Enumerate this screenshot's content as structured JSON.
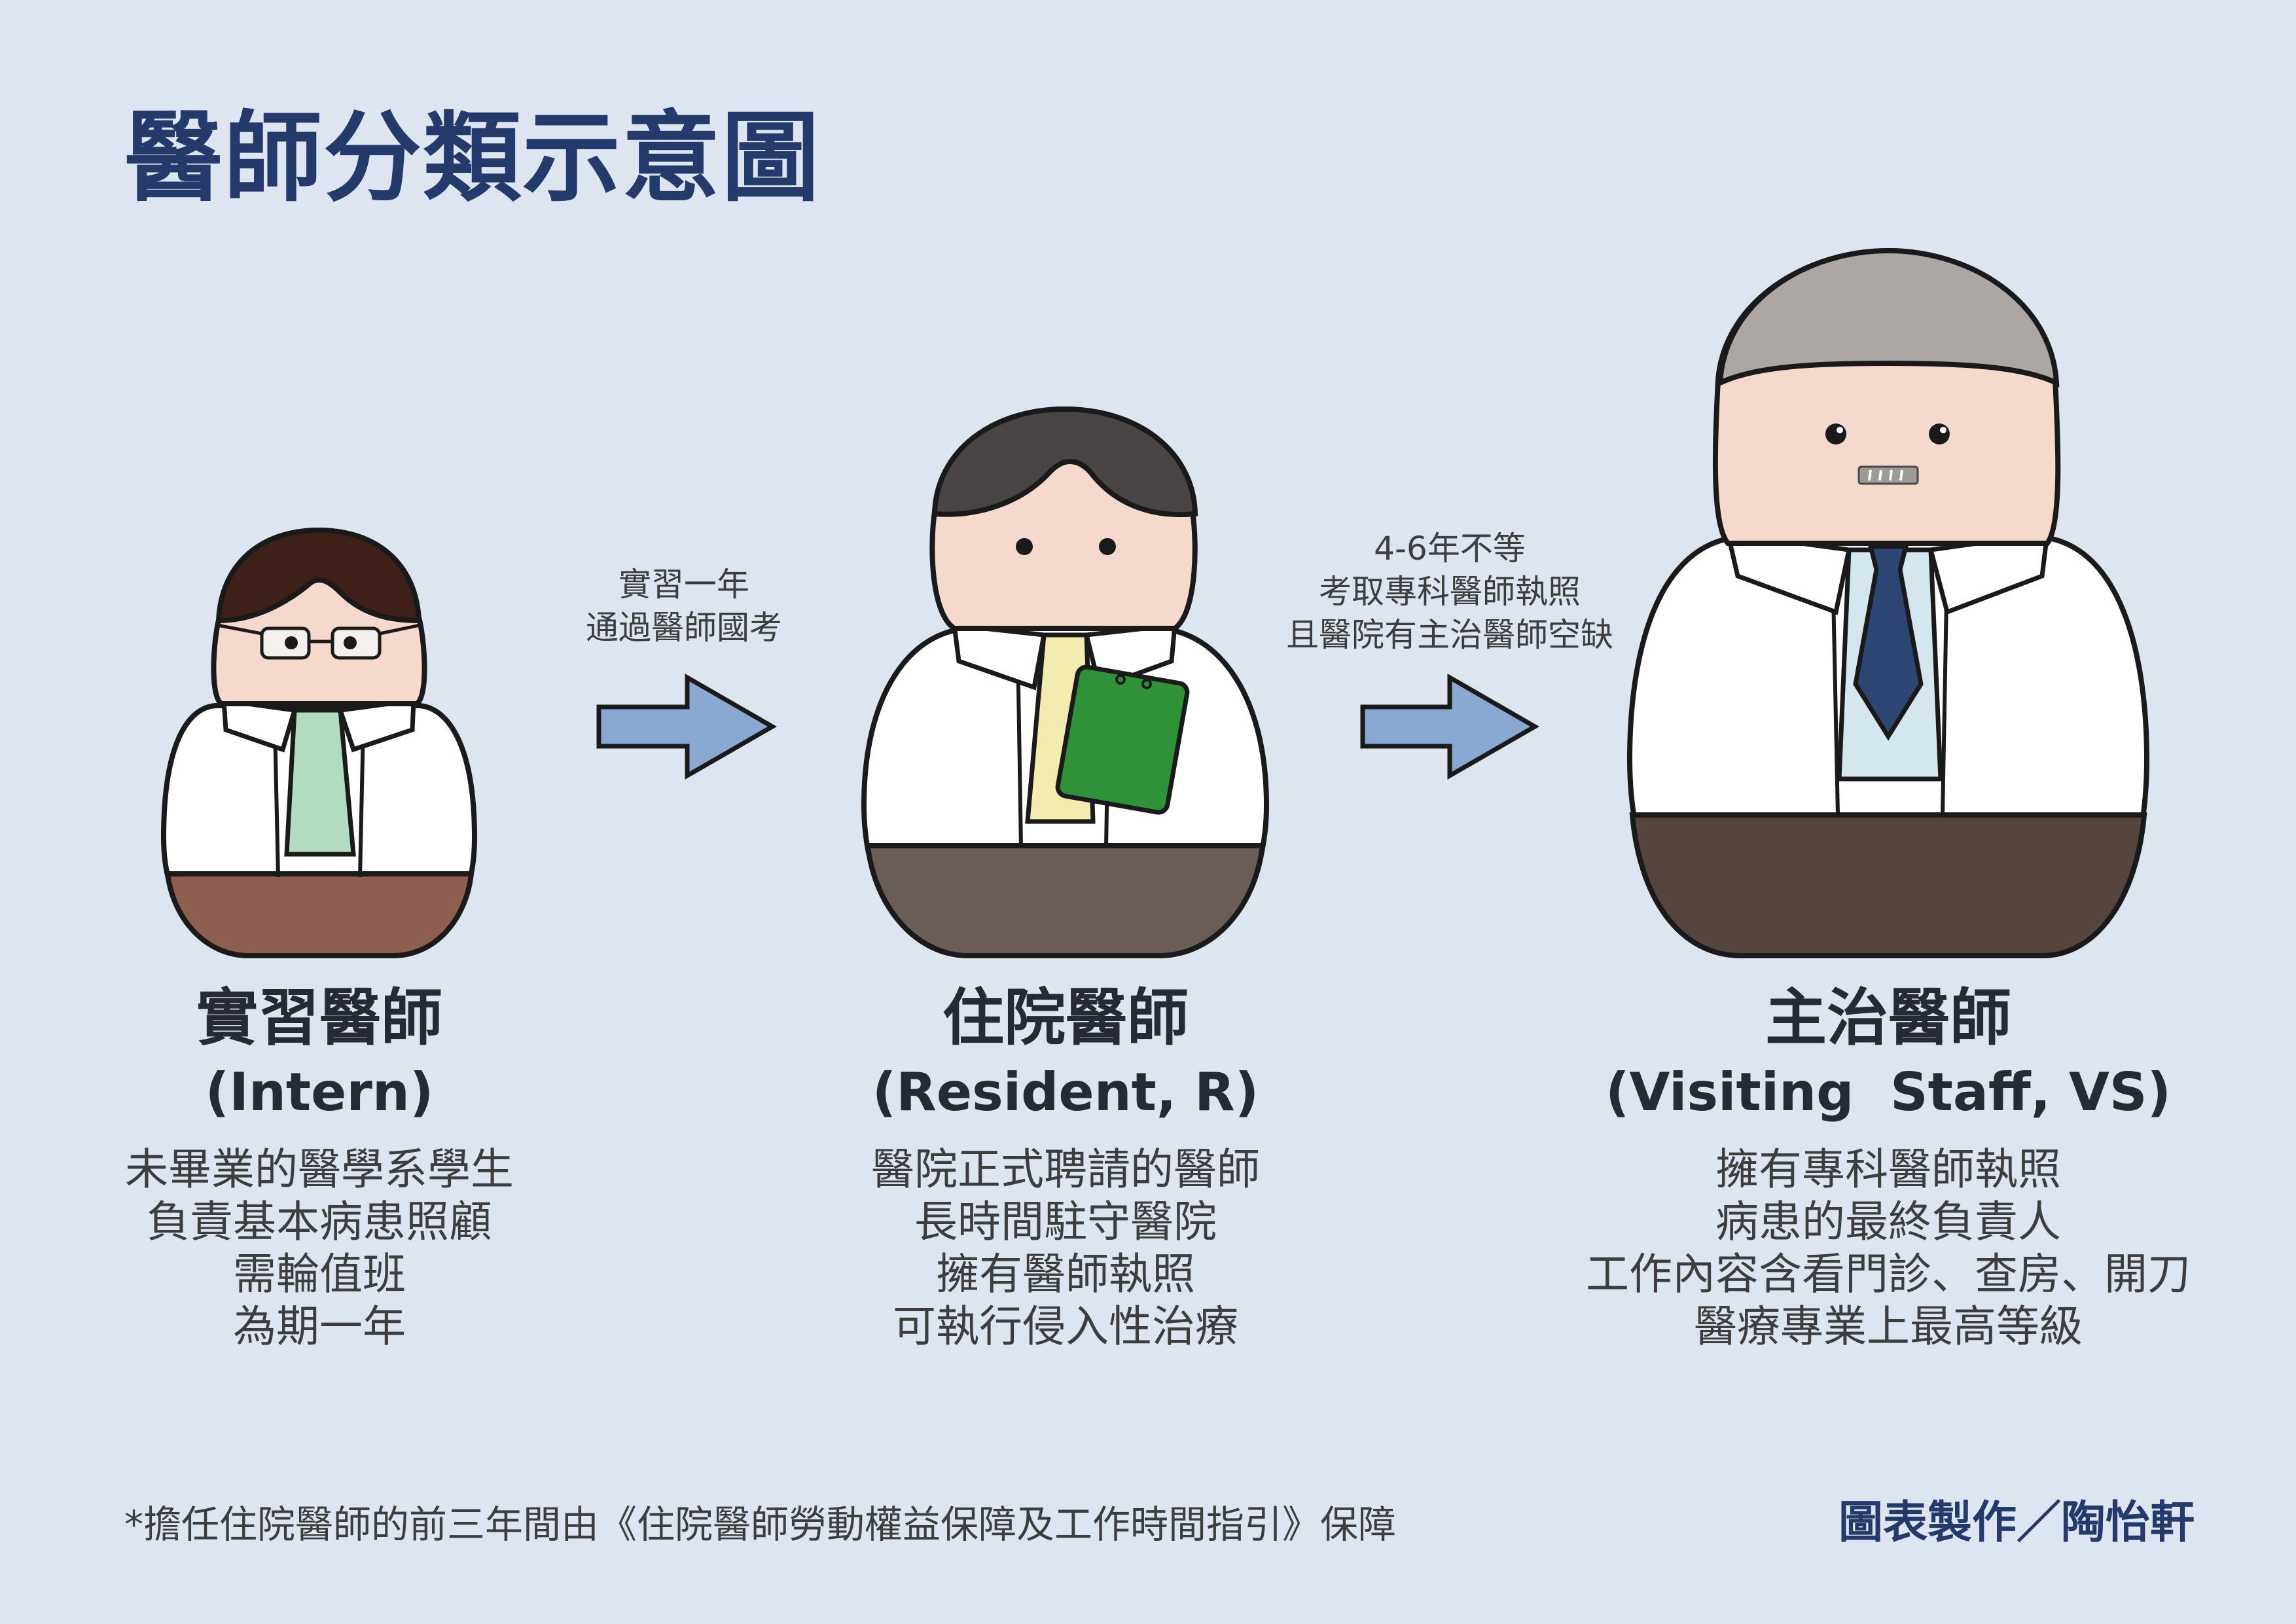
{
  "title": "醫師分類示意圖",
  "persons": [
    {
      "name": "實習醫師",
      "english": "(Intern)",
      "desc": [
        "未畢業的醫學系學生",
        "負責基本病患照顧",
        "需輪值班",
        "為期一年"
      ]
    },
    {
      "name": "住院醫師",
      "english": "(Resident, R)",
      "desc": [
        "醫院正式聘請的醫師",
        "長時間駐守醫院",
        "擁有醫師執照",
        "可執行侵入性治療"
      ]
    },
    {
      "name": "主治醫師",
      "english": "(Visiting  Staff, VS)",
      "desc": [
        "擁有專科醫師執照",
        "病患的最終負責人",
        "工作內容含看門診、查房、開刀",
        "醫療專業上最高等級"
      ]
    }
  ],
  "arrows": [
    {
      "lines": [
        "實習一年",
        "通過醫師國考"
      ]
    },
    {
      "lines": [
        "4-6年不等",
        "考取專科醫師執照",
        "且醫院有主治醫師空缺"
      ]
    }
  ],
  "footnote": "*擔任住院醫師的前三年間由《住院醫師勞動權益保障及工作時間指引》保障",
  "credit": "圖表製作／陶怡軒",
  "colors": {
    "background": "#dde5f1",
    "title": "#233a6a",
    "arrow": "#89a9d3",
    "skin": "#f5d9cc",
    "coat": "#ffffff",
    "intern_hair": "#3e2018",
    "intern_pants": "#8e5f51",
    "intern_shirt": "#b2dcc0",
    "resident_hair": "#4a4444",
    "resident_pants": "#6a5c57",
    "resident_shirt": "#f2ecb0",
    "clipboard": "#2f9238",
    "vs_hair": "#aca7a5",
    "vs_pants": "#56443e",
    "vs_shirt": "#d4e6ee",
    "vs_tie": "#2e4674"
  }
}
